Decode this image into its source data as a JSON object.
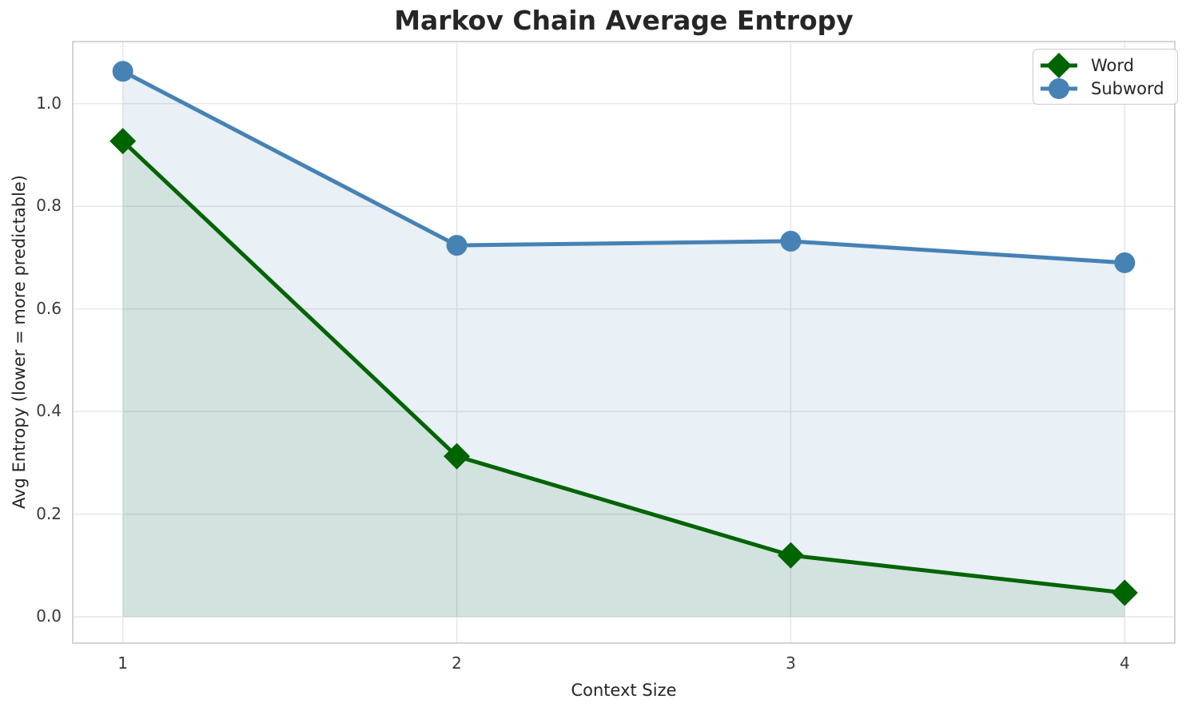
{
  "chart_data": {
    "type": "line",
    "title": "Markov Chain Average Entropy",
    "xlabel": "Context Size",
    "ylabel": "Avg Entropy (lower = more predictable)",
    "x": [
      1,
      2,
      3,
      4
    ],
    "xtick_labels": [
      "1",
      "2",
      "3",
      "4"
    ],
    "ytick_values": [
      0.0,
      0.2,
      0.4,
      0.6,
      0.8,
      1.0
    ],
    "ytick_labels": [
      "0.0",
      "0.2",
      "0.4",
      "0.6",
      "0.8",
      "1.0"
    ],
    "xlim": [
      0.85,
      4.15
    ],
    "ylim": [
      -0.051,
      1.121
    ],
    "grid": true,
    "legend_position": "upper right",
    "area_baseline": 0,
    "series": [
      {
        "name": "Word",
        "marker": "diamond",
        "color": "#006400",
        "fill_color": "rgba(0,100,0,0.10)",
        "values": [
          0.927,
          0.313,
          0.12,
          0.047
        ]
      },
      {
        "name": "Subword",
        "marker": "circle",
        "color": "#4682B4",
        "fill_color": "rgba(70,130,180,0.12)",
        "values": [
          1.063,
          0.724,
          0.732,
          0.69
        ]
      }
    ],
    "colors": {
      "grid": "#e8e8e8",
      "spine": "#c9c9c9",
      "tick_text": "#3a3a3a",
      "label_text": "#262626",
      "background": "#ffffff"
    }
  }
}
